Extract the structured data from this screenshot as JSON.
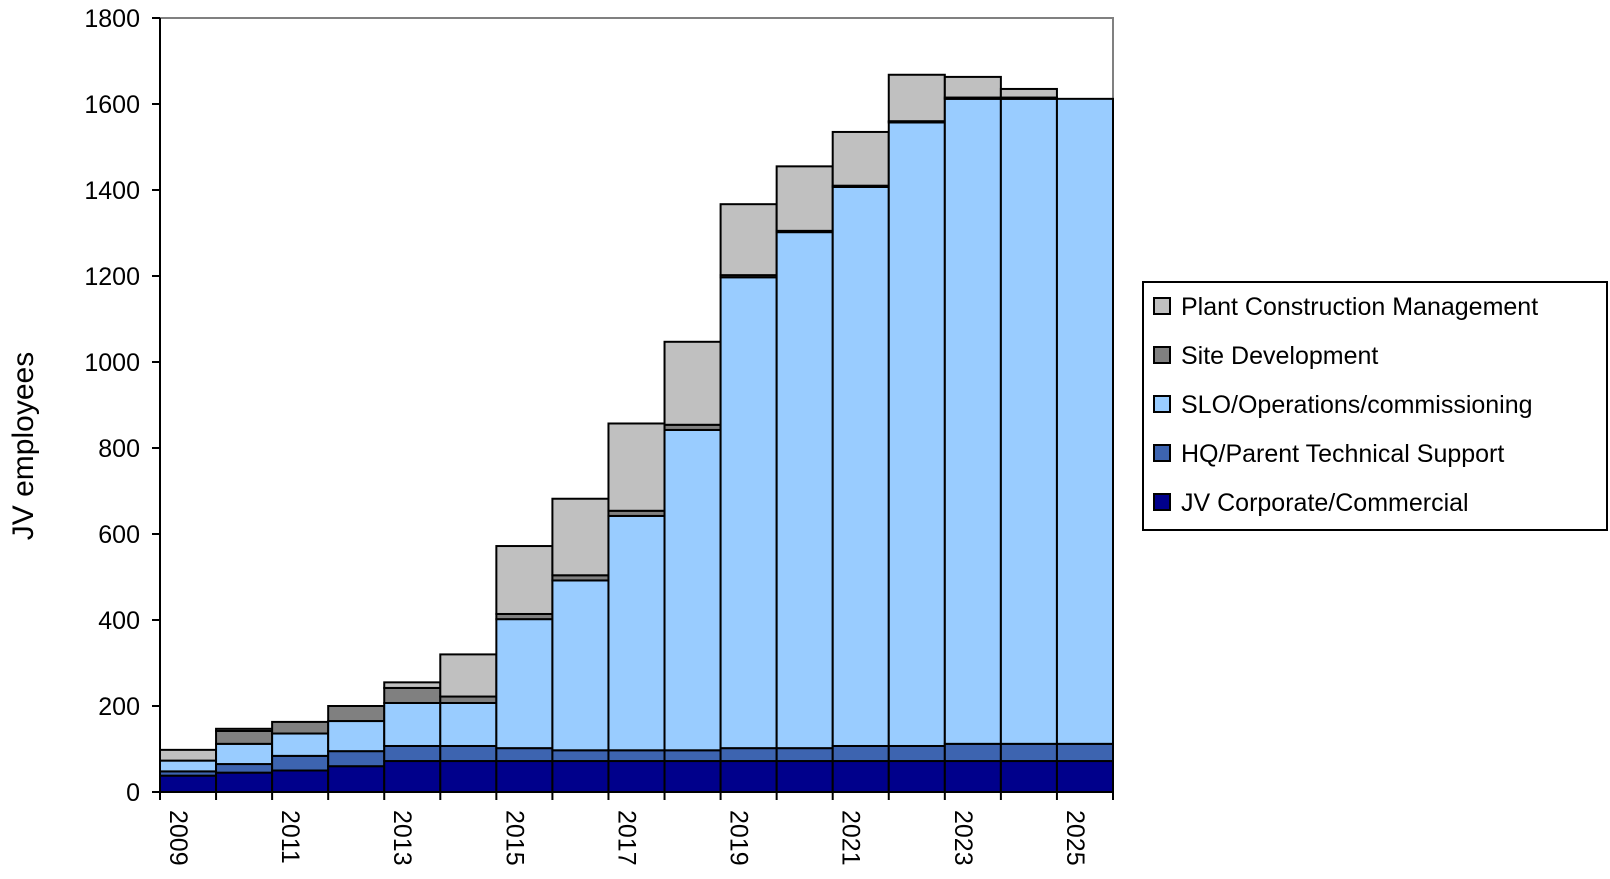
{
  "chart_data": {
    "type": "bar",
    "stacked": true,
    "title": "",
    "xlabel": "",
    "ylabel": "JV employees",
    "ylim": [
      0,
      1800
    ],
    "yticks": [
      "0",
      "200",
      "400",
      "600",
      "800",
      "1000",
      "1200",
      "1400",
      "1600",
      "1800"
    ],
    "categories": [
      "2009",
      "2010",
      "2011",
      "2012",
      "2013",
      "2014",
      "2015",
      "2016",
      "2017",
      "2018",
      "2019",
      "2020",
      "2021",
      "2022",
      "2023",
      "2024",
      "2025"
    ],
    "x_tick_labels": [
      "2009",
      "2011",
      "2013",
      "2015",
      "2017",
      "2019",
      "2021",
      "2023",
      "2025"
    ],
    "grid": false,
    "legend_position": "right",
    "series": [
      {
        "name": "JV Corporate/Commercial",
        "color": "#00008b",
        "values": [
          38,
          45,
          50,
          60,
          72,
          72,
          72,
          72,
          72,
          72,
          72,
          72,
          72,
          72,
          72,
          72,
          72
        ]
      },
      {
        "name": "HQ/Parent Technical Support",
        "color": "#3d64b0",
        "values": [
          10,
          20,
          34,
          35,
          35,
          35,
          30,
          25,
          25,
          25,
          30,
          30,
          35,
          35,
          40,
          40,
          40
        ]
      },
      {
        "name": "SLO/Operations/commissioning",
        "color": "#99ccff",
        "values": [
          25,
          47,
          52,
          70,
          100,
          100,
          300,
          395,
          545,
          745,
          1095,
          1200,
          1300,
          1450,
          1500,
          1500,
          1500
        ]
      },
      {
        "name": "Site Development",
        "color": "#808080",
        "values": [
          0,
          30,
          27,
          35,
          35,
          15,
          12,
          12,
          12,
          12,
          5,
          3,
          3,
          3,
          3,
          3,
          0
        ]
      },
      {
        "name": "Plant Construction Management",
        "color": "#c0c0c0",
        "values": [
          25,
          5,
          0,
          0,
          13,
          98,
          158,
          178,
          203,
          193,
          165,
          150,
          125,
          108,
          48,
          20,
          0
        ]
      }
    ]
  }
}
